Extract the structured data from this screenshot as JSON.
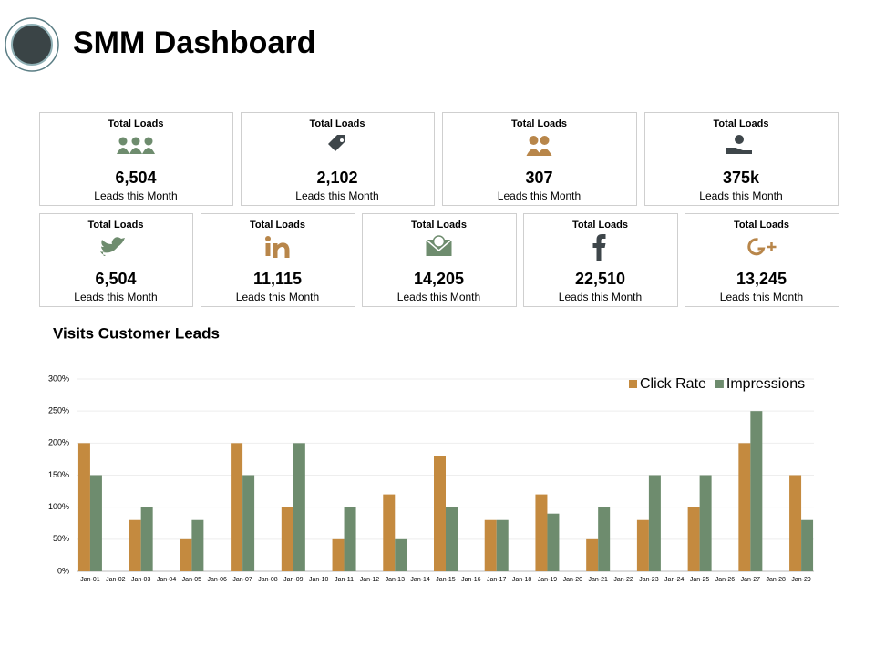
{
  "header": {
    "title": "SMM Dashboard"
  },
  "cards": [
    {
      "title": "Total Loads",
      "value": "6,504",
      "subtitle": "Leads this Month"
    },
    {
      "title": "Total Loads",
      "value": "2,102",
      "subtitle": "Leads this Month"
    },
    {
      "title": "Total Loads",
      "value": "307",
      "subtitle": "Leads this Month"
    },
    {
      "title": "Total Loads",
      "value": "375k",
      "subtitle": "Leads this Month"
    },
    {
      "title": "Total Loads",
      "value": "6,504",
      "subtitle": "Leads this Month"
    },
    {
      "title": "Total Loads",
      "value": "11,115",
      "subtitle": "Leads this Month"
    },
    {
      "title": "Total Loads",
      "value": "14,205",
      "subtitle": "Leads this Month"
    },
    {
      "title": "Total Loads",
      "value": "22,510",
      "subtitle": "Leads this Month"
    },
    {
      "title": "Total Loads",
      "value": "13,245",
      "subtitle": "Leads this Month"
    }
  ],
  "chart_data": {
    "type": "bar",
    "title": "Visits Customer Leads",
    "categories": [
      "Jan-01",
      "Jan-02",
      "Jan-03",
      "Jan-04",
      "Jan-05",
      "Jan-06",
      "Jan-07",
      "Jan-08",
      "Jan-09",
      "Jan-10",
      "Jan-11",
      "Jan-12",
      "Jan-13",
      "Jan-14",
      "Jan-15",
      "Jan-16",
      "Jan-17",
      "Jan-18",
      "Jan-19",
      "Jan-20",
      "Jan-21",
      "Jan-22",
      "Jan-23",
      "Jan-24",
      "Jan-25",
      "Jan-26",
      "Jan-27",
      "Jan-28",
      "Jan-29"
    ],
    "series": [
      {
        "name": "Click Rate",
        "color": "#c48a3f",
        "values": [
          200,
          null,
          80,
          null,
          50,
          null,
          200,
          null,
          100,
          null,
          50,
          null,
          120,
          null,
          180,
          null,
          80,
          null,
          120,
          null,
          50,
          null,
          80,
          null,
          100,
          null,
          200,
          null,
          150
        ]
      },
      {
        "name": "Impressions",
        "color": "#6e8c6e",
        "values": [
          150,
          null,
          100,
          null,
          80,
          null,
          150,
          null,
          200,
          null,
          100,
          null,
          50,
          null,
          100,
          null,
          80,
          null,
          90,
          null,
          100,
          null,
          150,
          null,
          150,
          null,
          250,
          null,
          80
        ]
      }
    ],
    "ylim": [
      0,
      300
    ],
    "yticks": [
      {
        "value": 0,
        "label": "0%"
      },
      {
        "value": 50,
        "label": "50%"
      },
      {
        "value": 100,
        "label": "100%"
      },
      {
        "value": 150,
        "label": "150%"
      },
      {
        "value": 200,
        "label": "200%"
      },
      {
        "value": 250,
        "label": "250%"
      },
      {
        "value": 300,
        "label": "300%"
      }
    ],
    "grid": true,
    "legend": "top-right"
  }
}
